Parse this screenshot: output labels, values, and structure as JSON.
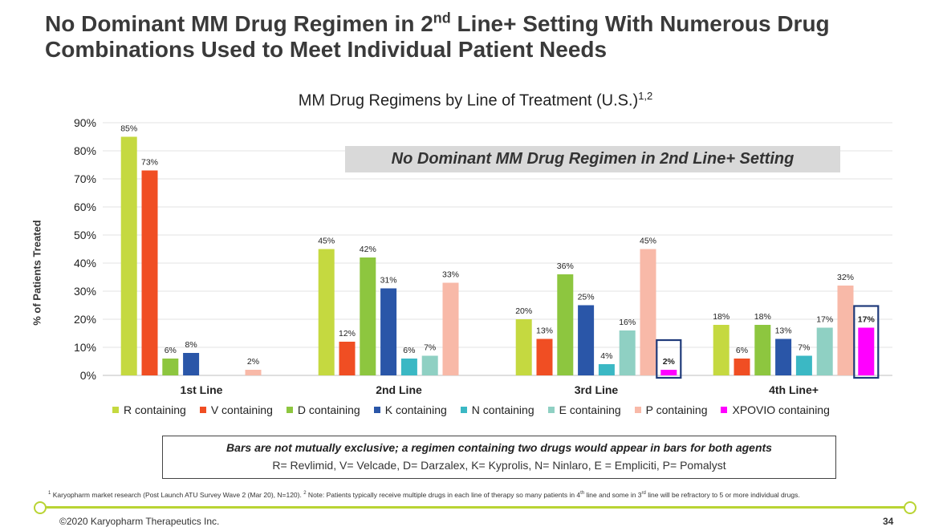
{
  "slide": {
    "title_part1": "No Dominant MM Drug Regimen in 2",
    "title_sup": "nd",
    "title_part2": " Line+ Setting With Numerous Drug",
    "title_line2": "Combinations Used to Meet Individual Patient Needs",
    "banner": "No Dominant MM Drug Regimen in 2nd Line+ Setting",
    "note_bold": "Bars are not mutually exclusive; a regimen containing two drugs would appear in bars for both agents",
    "note_key": "R= Revlimid, V= Velcade, D= Darzalex, K= Kyprolis, N= Ninlaro, E = Empliciti, P= Pomalyst",
    "footnote_part1": "Karyopharm market research (Post Launch ATU Survey Wave 2 (Mar 20), N=120). ",
    "footnote_sup1": "1",
    "footnote_sup2": "2",
    "footnote_part2": " Note: Patients typically receive multiple drugs in each line of therapy so many patients in 4",
    "footnote_sup_th": "th",
    "footnote_part3": " line and some in 3",
    "footnote_sup_rd": "rd",
    "footnote_part4": " line will be refractory to 5 or more individual drugs.",
    "copyright": "©2020 Karyopharm Therapeutics Inc.",
    "page_number": "34",
    "accent_color": "#b9d433"
  },
  "chart_data": {
    "type": "bar",
    "title": "MM Drug Regimens by Line of Treatment (U.S.)",
    "title_sup": "1,2",
    "ylabel": "% of Patients Treated",
    "xlabel": "",
    "ylim": [
      0,
      90
    ],
    "yticks": [
      0,
      10,
      20,
      30,
      40,
      50,
      60,
      70,
      80,
      90
    ],
    "ytick_labels": [
      "0%",
      "10%",
      "20%",
      "30%",
      "40%",
      "50%",
      "60%",
      "70%",
      "80%",
      "90%"
    ],
    "grid": true,
    "legend_position": "bottom",
    "categories": [
      "1st Line",
      "2nd Line",
      "3rd Line",
      "4th Line+"
    ],
    "series": [
      {
        "name": "R containing",
        "color": "#c5d940",
        "values": [
          85,
          45,
          20,
          18
        ]
      },
      {
        "name": "V containing",
        "color": "#f04e23",
        "values": [
          73,
          12,
          13,
          6
        ]
      },
      {
        "name": "D containing",
        "color": "#8dc63f",
        "values": [
          6,
          42,
          36,
          18
        ]
      },
      {
        "name": "K containing",
        "color": "#2a56a8",
        "values": [
          8,
          31,
          25,
          13
        ]
      },
      {
        "name": "N containing",
        "color": "#3bb8c4",
        "values": [
          null,
          6,
          4,
          7
        ]
      },
      {
        "name": "E containing",
        "color": "#8fd0c3",
        "values": [
          null,
          7,
          16,
          17
        ]
      },
      {
        "name": "P containing",
        "color": "#f8b9a8",
        "values": [
          2,
          33,
          45,
          32
        ]
      },
      {
        "name": "XPOVIO containing",
        "color": "#ff00ff",
        "values": [
          null,
          null,
          2,
          17
        ]
      }
    ],
    "highlighted_series": "XPOVIO containing",
    "highlight_color": "#1f3a7a"
  }
}
